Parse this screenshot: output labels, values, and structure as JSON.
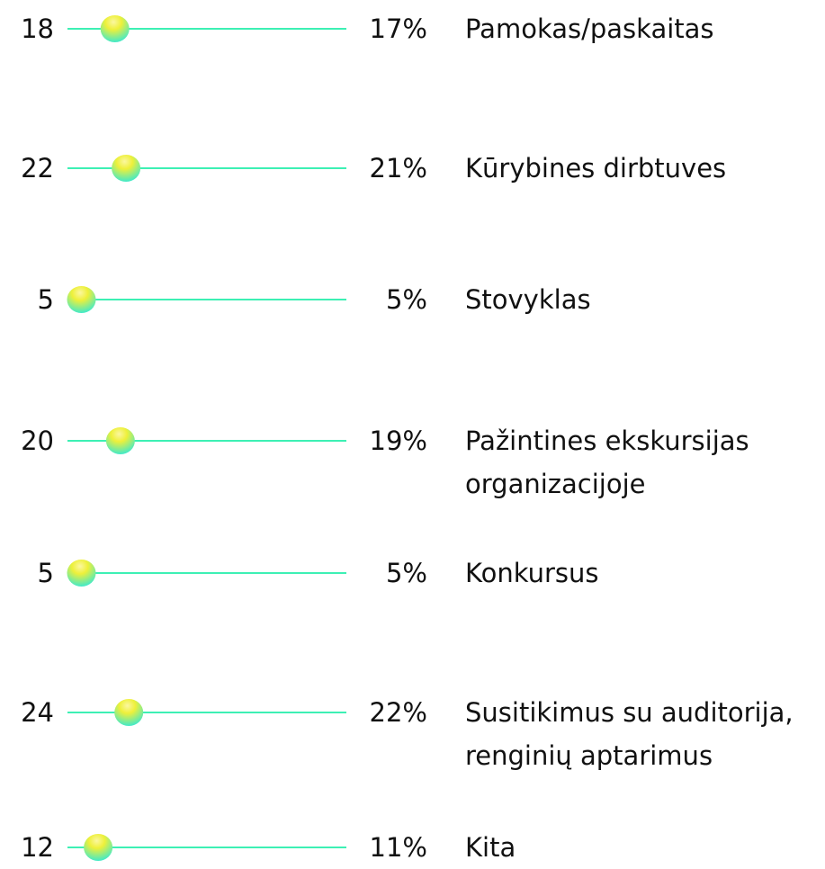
{
  "chart_data": {
    "type": "dot",
    "categories": [
      "Pamokas/paskaitas",
      "Kūrybines dirbtuves",
      "Stovyklas",
      "Pažintines ekskursijas organizacijoje",
      "Konkursus",
      "Susitikimus su auditorija, renginių aptarimus",
      "Kita"
    ],
    "counts": [
      18,
      22,
      5,
      20,
      5,
      24,
      12
    ],
    "values": [
      17,
      21,
      5,
      19,
      5,
      22,
      11
    ],
    "value_labels": [
      "17%",
      "21%",
      "5%",
      "19%",
      "5%",
      "22%",
      "11%"
    ],
    "xlim": [
      0,
      100
    ],
    "color": "#3df0b4"
  }
}
